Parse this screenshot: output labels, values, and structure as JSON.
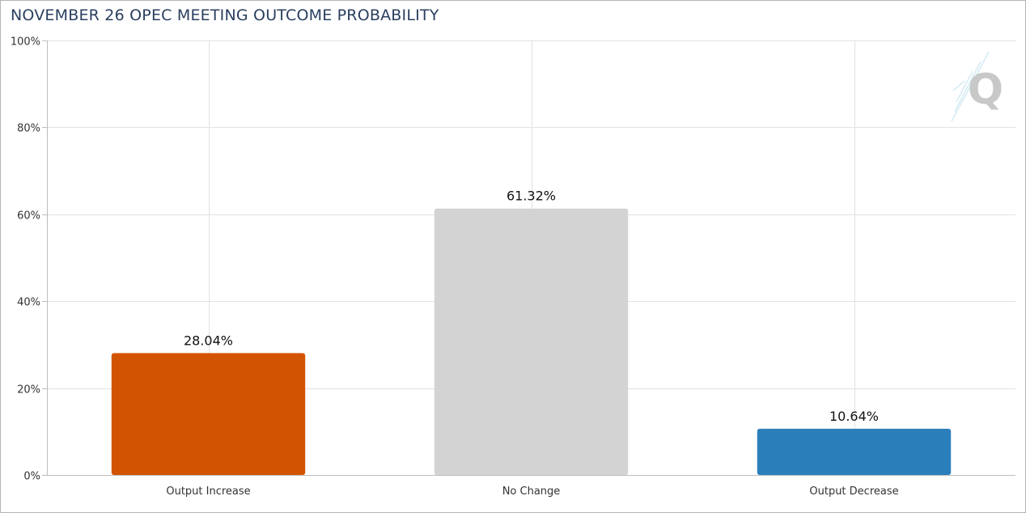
{
  "chart_data": {
    "type": "bar",
    "title": "NOVEMBER 26 OPEC MEETING OUTCOME PROBABILITY",
    "categories": [
      "Output Increase",
      "No Change",
      "Output Decrease"
    ],
    "values": [
      28.04,
      61.32,
      10.64
    ],
    "data_labels": [
      "28.04%",
      "61.32%",
      "10.64%"
    ],
    "bar_colors": [
      "#d35400",
      "#d3d3d3",
      "#2a7fba"
    ],
    "ylim": [
      0,
      100
    ],
    "yticks": [
      0,
      20,
      40,
      60,
      80,
      100
    ],
    "ytick_labels": [
      "0%",
      "20%",
      "40%",
      "60%",
      "80%",
      "100%"
    ],
    "xlabel": "",
    "ylabel": "",
    "grid": true,
    "legend": "none"
  },
  "branding": {
    "logo_letter": "Q",
    "logo_icon": "q-logo-icon"
  }
}
